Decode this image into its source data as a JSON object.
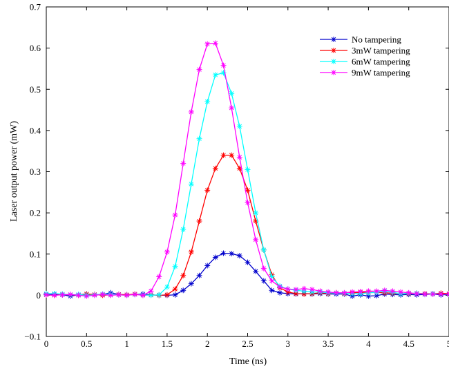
{
  "chart_data": {
    "type": "line",
    "title": "",
    "xlabel": "Time (ns)",
    "ylabel": "Laser output power (mW)",
    "xlim": [
      0,
      5
    ],
    "ylim": [
      -0.1,
      0.7
    ],
    "xticks": [
      0,
      0.5,
      1,
      1.5,
      2,
      2.5,
      3,
      3.5,
      4,
      4.5,
      5
    ],
    "xtick_labels": [
      "0",
      "0.5",
      "1",
      "1.5",
      "2",
      "2.5",
      "3",
      "3.5",
      "4",
      "4.5",
      "5"
    ],
    "yticks": [
      -0.1,
      0,
      0.1,
      0.2,
      0.3,
      0.4,
      0.5,
      0.6,
      0.7
    ],
    "ytick_labels": [
      "−0.1",
      "0",
      "0.1",
      "0.2",
      "0.3",
      "0.4",
      "0.5",
      "0.6",
      "0.7"
    ],
    "grid": false,
    "legend_position": "top-right",
    "marker": "asterisk",
    "x": [
      0,
      0.1,
      0.2,
      0.3,
      0.4,
      0.5,
      0.6,
      0.7,
      0.8,
      0.9,
      1.0,
      1.1,
      1.2,
      1.3,
      1.4,
      1.5,
      1.6,
      1.7,
      1.8,
      1.9,
      2.0,
      2.1,
      2.2,
      2.3,
      2.4,
      2.5,
      2.6,
      2.7,
      2.8,
      2.9,
      3.0,
      3.1,
      3.2,
      3.3,
      3.4,
      3.5,
      3.6,
      3.7,
      3.8,
      3.9,
      4.0,
      4.1,
      4.2,
      4.3,
      4.4,
      4.5,
      4.6,
      4.7,
      4.8,
      4.9,
      5.0
    ],
    "series": [
      {
        "name": "No tampering",
        "color": "#0000cc",
        "values": [
          0.002,
          0.003,
          0.001,
          -0.002,
          0.001,
          0.003,
          0.001,
          0.002,
          0.006,
          0.002,
          0.001,
          0.002,
          0.003,
          0.001,
          0.0,
          0.0,
          0.001,
          0.012,
          0.028,
          0.048,
          0.072,
          0.092,
          0.102,
          0.101,
          0.096,
          0.08,
          0.058,
          0.035,
          0.012,
          0.006,
          0.004,
          0.003,
          0.004,
          0.003,
          0.004,
          0.003,
          0.003,
          0.003,
          -0.002,
          0.001,
          -0.002,
          -0.001,
          0.003,
          0.002,
          0.001,
          0.002,
          0.001,
          0.002,
          0.003,
          0.001,
          0.002
        ]
      },
      {
        "name": "3mW tampering",
        "color": "#ff0000",
        "values": [
          0.001,
          0.0,
          0.002,
          0.001,
          0.0,
          0.003,
          0.002,
          0.0,
          0.001,
          0.002,
          0.001,
          0.003,
          0.0,
          0.001,
          0.0,
          0.001,
          0.015,
          0.048,
          0.105,
          0.18,
          0.255,
          0.308,
          0.34,
          0.34,
          0.308,
          0.255,
          0.18,
          0.11,
          0.05,
          0.018,
          0.008,
          0.004,
          0.003,
          0.004,
          0.006,
          0.004,
          0.006,
          0.004,
          0.006,
          0.007,
          0.007,
          0.007,
          0.006,
          0.005,
          0.004,
          0.004,
          0.005,
          0.004,
          0.004,
          0.005,
          0.004
        ]
      },
      {
        "name": "6mW tampering",
        "color": "#00ffff",
        "values": [
          0.004,
          0.004,
          0.003,
          0.001,
          0.002,
          0.0,
          0.001,
          0.003,
          0.002,
          0.001,
          0.0,
          0.002,
          0.001,
          0.0,
          0.001,
          0.02,
          0.07,
          0.16,
          0.27,
          0.38,
          0.47,
          0.535,
          0.54,
          0.49,
          0.41,
          0.305,
          0.2,
          0.11,
          0.045,
          0.022,
          0.015,
          0.012,
          0.01,
          0.008,
          0.008,
          0.006,
          0.005,
          0.005,
          0.004,
          0.004,
          0.006,
          0.007,
          0.01,
          0.007,
          0.004,
          0.005,
          0.005,
          0.003,
          0.004,
          0.003,
          0.003
        ]
      },
      {
        "name": "9mW tampering",
        "color": "#ff00ff",
        "values": [
          0.001,
          0.0,
          0.001,
          0.002,
          0.0,
          -0.002,
          0.0,
          0.002,
          0.0,
          0.001,
          0.0,
          0.002,
          0.0,
          0.01,
          0.045,
          0.105,
          0.195,
          0.32,
          0.445,
          0.548,
          0.61,
          0.612,
          0.558,
          0.455,
          0.335,
          0.225,
          0.135,
          0.065,
          0.035,
          0.02,
          0.015,
          0.014,
          0.016,
          0.014,
          0.01,
          0.008,
          0.006,
          0.006,
          0.008,
          0.009,
          0.01,
          0.01,
          0.012,
          0.01,
          0.008,
          0.006,
          0.004,
          0.003,
          0.003,
          0.003,
          0.003
        ]
      }
    ]
  }
}
